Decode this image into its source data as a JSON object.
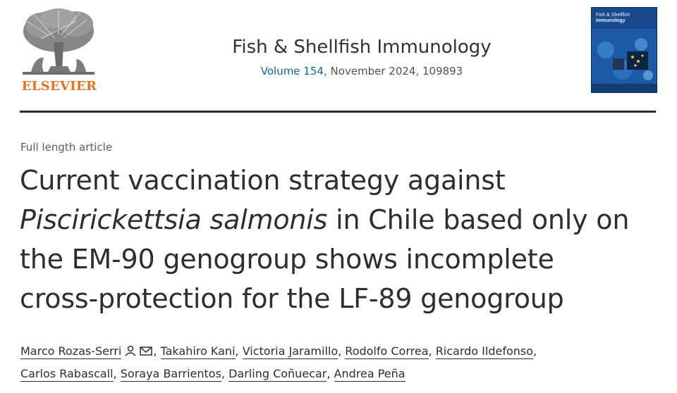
{
  "publisher": {
    "name": "ELSEVIER",
    "logo_icon": "elsevier-tree-icon",
    "accent": "#e9711c"
  },
  "journal": {
    "title": "Fish & Shellfish Immunology",
    "volume_link": "Volume 154",
    "issue_info": ", November 2024, 109893",
    "cover_icon": "journal-cover-image",
    "cover_title_line1": "Fish & Shellfish",
    "cover_title_line2": "Immunology"
  },
  "article": {
    "type": "Full length article",
    "title_line1": "Current vaccination strategy against",
    "title_italic": "Piscirickettsia salmonis",
    "title_line2_rest": " in Chile based only on",
    "title_line3": "the EM-90 genogroup shows incomplete",
    "title_line4": "cross-protection for the LF-89 genogroup"
  },
  "authors": [
    "Marco Rozas-Serri",
    "Takahiro Kani",
    "Victoria Jaramillo",
    "Rodolfo Correa",
    "Ricardo Ildefonso",
    "Carlos Rabascall",
    "Soraya Barrientos",
    "Darling Coñuecar",
    "Andrea Peña"
  ],
  "corresponding_icons": [
    "person-icon",
    "envelope-icon"
  ]
}
